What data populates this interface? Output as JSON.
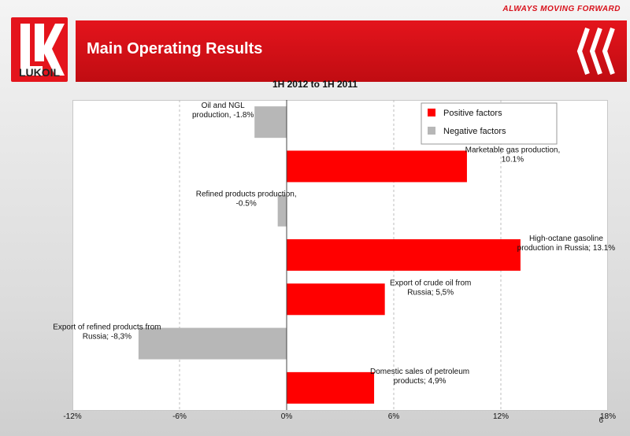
{
  "header": {
    "tagline": "ALWAYS MOVING FORWARD",
    "logo_text": "LUKOIL",
    "title": "Main Operating Results"
  },
  "page_number": "6",
  "colors": {
    "brand_red": "#e4141c",
    "positive": "#ff0000",
    "negative": "#b7b7b7"
  },
  "chart_data": {
    "type": "bar",
    "orientation": "horizontal",
    "title": "1H 2012 to 1H 2011",
    "xlim": [
      -12,
      18
    ],
    "xticks": [
      "-12%",
      "-6%",
      "0%",
      "6%",
      "12%",
      "18%"
    ],
    "grid": "vertical dashed",
    "legend_position": "top-right",
    "legend": [
      {
        "label": "Positive factors",
        "color": "#ff0000"
      },
      {
        "label": "Negative factors",
        "color": "#b7b7b7"
      }
    ],
    "bars": [
      {
        "label": [
          "Oil and NGL",
          "production, -1.8%"
        ],
        "value": -1.8
      },
      {
        "label": [
          "Marketable gas production,",
          "10.1%"
        ],
        "value": 10.1
      },
      {
        "label": [
          "Refined products production,",
          "-0.5%"
        ],
        "value": -0.5
      },
      {
        "label": [
          "High-octane gasoline",
          "production in Russia; 13.1%"
        ],
        "value": 13.1
      },
      {
        "label": [
          "Export of crude oil from",
          "Russia; 5,5%"
        ],
        "value": 5.5
      },
      {
        "label": [
          "Export of refined products from",
          "Russia; -8,3%"
        ],
        "value": -8.3
      },
      {
        "label": [
          "Domestic sales of petroleum",
          "products; 4,9%"
        ],
        "value": 4.9
      }
    ]
  }
}
